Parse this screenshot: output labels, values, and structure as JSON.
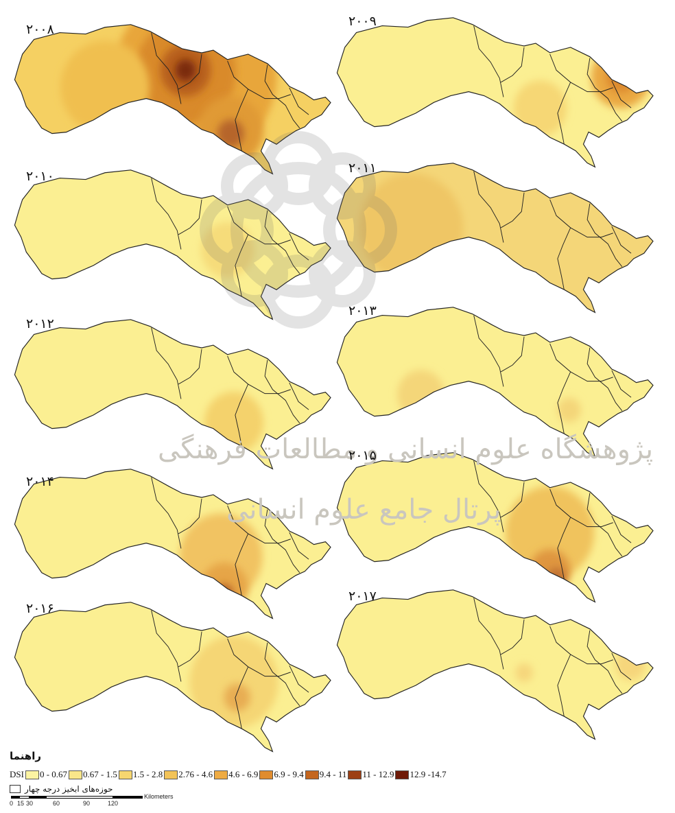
{
  "map": {
    "panels": [
      {
        "year": "۲۰۰۸",
        "fill": "#f5d062",
        "hotspots": [
          {
            "fx": 0.58,
            "fy": 0.36,
            "r": 0.55,
            "color": "#e8a63a"
          },
          {
            "fx": 0.55,
            "fy": 0.34,
            "r": 0.34,
            "color": "#d98a2a"
          },
          {
            "fx": 0.55,
            "fy": 0.33,
            "r": 0.17,
            "color": "#b8601c"
          },
          {
            "fx": 0.55,
            "fy": 0.33,
            "r": 0.07,
            "color": "#7a2a0c"
          },
          {
            "fx": 0.69,
            "fy": 0.72,
            "r": 0.22,
            "color": "#e09a35"
          },
          {
            "fx": 0.69,
            "fy": 0.74,
            "r": 0.09,
            "color": "#b6652a"
          },
          {
            "fx": 0.3,
            "fy": 0.44,
            "r": 0.3,
            "color": "#f0bf4f"
          }
        ]
      },
      {
        "year": "۲۰۰۹",
        "fill": "#fbef92",
        "hotspots": [
          {
            "fx": 0.9,
            "fy": 0.42,
            "r": 0.2,
            "color": "#eaa842"
          },
          {
            "fx": 0.9,
            "fy": 0.42,
            "r": 0.1,
            "color": "#dd8a2e"
          },
          {
            "fx": 0.65,
            "fy": 0.62,
            "r": 0.18,
            "color": "#f6d774"
          }
        ]
      },
      {
        "year": "۲۰۱۰",
        "fill": "#fbef92",
        "hotspots": [
          {
            "fx": 0.68,
            "fy": 0.55,
            "r": 0.18,
            "color": "#f6dc7a"
          }
        ]
      },
      {
        "year": "۲۰۱۱",
        "fill": "#f4d678",
        "hotspots": [
          {
            "fx": 0.25,
            "fy": 0.45,
            "r": 0.35,
            "color": "#efc665"
          }
        ]
      },
      {
        "year": "۲۰۱۲",
        "fill": "#fbef92",
        "hotspots": [
          {
            "fx": 0.7,
            "fy": 0.7,
            "r": 0.2,
            "color": "#f4d26c"
          }
        ]
      },
      {
        "year": "۲۰۱۳",
        "fill": "#fbef92",
        "hotspots": [
          {
            "fx": 0.28,
            "fy": 0.6,
            "r": 0.16,
            "color": "#f4d679"
          },
          {
            "fx": 0.74,
            "fy": 0.7,
            "r": 0.08,
            "color": "#f4d679"
          }
        ]
      },
      {
        "year": "۲۰۱۴",
        "fill": "#fbef92",
        "hotspots": [
          {
            "fx": 0.66,
            "fy": 0.6,
            "r": 0.28,
            "color": "#f1c362"
          },
          {
            "fx": 0.67,
            "fy": 0.8,
            "r": 0.16,
            "color": "#e6a547"
          },
          {
            "fx": 0.67,
            "fy": 0.84,
            "r": 0.06,
            "color": "#b35c24"
          }
        ]
      },
      {
        "year": "۲۰۱۵",
        "fill": "#fbef92",
        "hotspots": [
          {
            "fx": 0.68,
            "fy": 0.55,
            "r": 0.3,
            "color": "#f0c35d"
          },
          {
            "fx": 0.68,
            "fy": 0.8,
            "r": 0.14,
            "color": "#df9640"
          },
          {
            "fx": 0.7,
            "fy": 0.84,
            "r": 0.06,
            "color": "#c07130"
          }
        ]
      },
      {
        "year": "۲۰۱۶",
        "fill": "#fbef92",
        "hotspots": [
          {
            "fx": 0.7,
            "fy": 0.55,
            "r": 0.3,
            "color": "#f5d675"
          },
          {
            "fx": 0.71,
            "fy": 0.65,
            "r": 0.09,
            "color": "#e8ad52"
          }
        ]
      },
      {
        "year": "۲۰۱۷",
        "fill": "#fbef92",
        "hotspots": [
          {
            "fx": 0.6,
            "fy": 0.57,
            "r": 0.06,
            "color": "#f6d67c"
          },
          {
            "fx": 0.93,
            "fy": 0.52,
            "r": 0.1,
            "color": "#f6d67c"
          }
        ]
      }
    ],
    "outline_color": "#222222"
  },
  "legend": {
    "title": "راهنما",
    "index_label": "DSI",
    "classes": [
      {
        "label": "0 - 0.67",
        "color": "#fbf3a2"
      },
      {
        "label": "0.67 - 1.5",
        "color": "#f9e68a"
      },
      {
        "label": "1.5 - 2.8",
        "color": "#f6d66f"
      },
      {
        "label": "2.76 - 4.6",
        "color": "#f2c358"
      },
      {
        "label": "4.6 - 6.9",
        "color": "#eeab43"
      },
      {
        "label": "6.9 - 9.4",
        "color": "#e08c2e"
      },
      {
        "label": "9.4 - 11",
        "color": "#c4661f"
      },
      {
        "label": "11 - 12.9",
        "color": "#9c3f14"
      },
      {
        "label": "12.9 -14.7",
        "color": "#6e1a08"
      }
    ],
    "basin_label": "حوزه‌های ابخیز درجه چهار"
  },
  "scale": {
    "unit": "Kilometers",
    "ticks": [
      "0",
      "15",
      "30",
      "60",
      "90",
      "120"
    ]
  },
  "watermark": {
    "line1": "پژوهشگاه علوم انسانی و مطالعات فرهنگی",
    "line2": "پرتال جامع علوم انسانی"
  }
}
